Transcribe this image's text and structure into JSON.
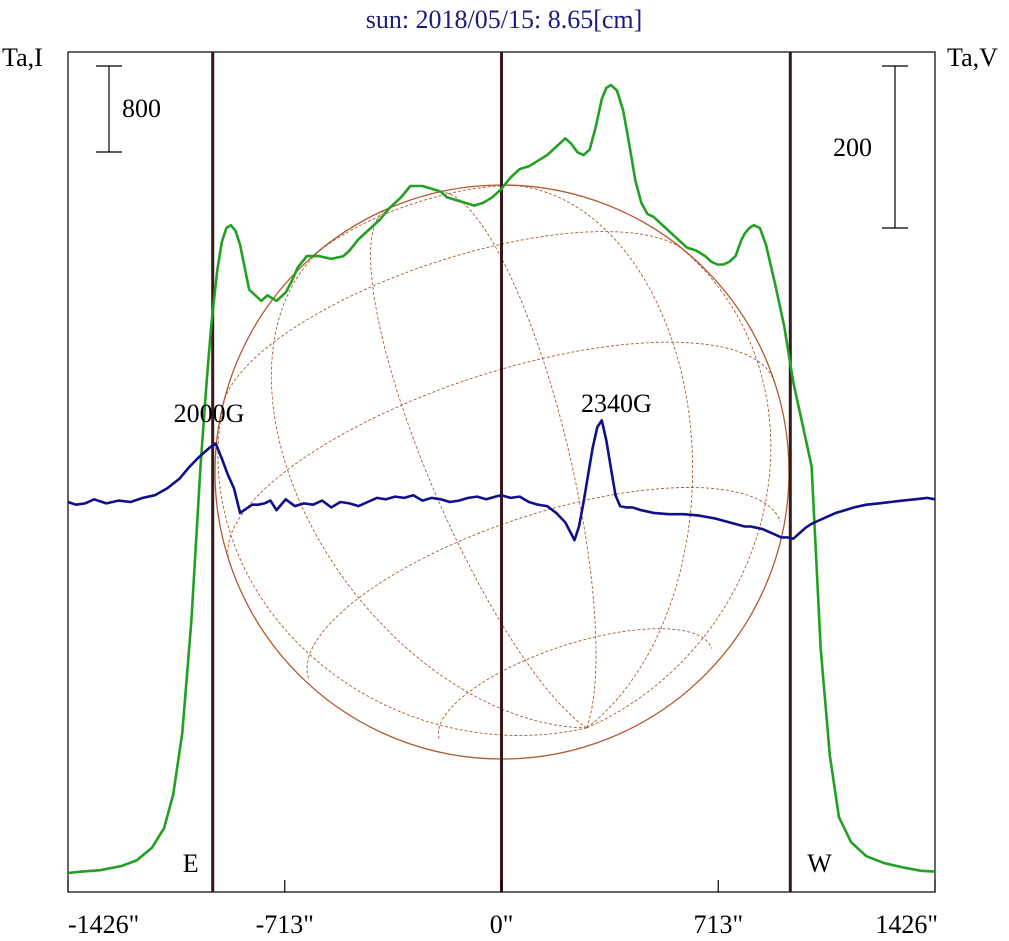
{
  "chart_data": {
    "type": "line",
    "title": "sun: 2018/05/15: 8.65[cm]",
    "left_axis_label": "Ta,I",
    "right_axis_label": "Ta,V",
    "left_scale_bar_label": "800",
    "right_scale_bar_label": "200",
    "x_ticks": [
      "-1426\"",
      "-713\"",
      "0\"",
      "713\"",
      "1426\""
    ],
    "x_tick_values": [
      -1426,
      -713,
      0,
      713,
      1426
    ],
    "xlim": [
      -1426,
      1426
    ],
    "limb_markers": [
      {
        "label": "E",
        "x": -950
      },
      {
        "label": "",
        "x": 0
      },
      {
        "label": "W",
        "x": 950
      }
    ],
    "annotations": [
      {
        "text": "2000G",
        "x": -980
      },
      {
        "text": "2340G",
        "x": 360
      }
    ],
    "colors": {
      "intensity": "#22a022",
      "polarization": "#10108a",
      "disk": "#b05a30",
      "markers": "#3a1818",
      "title": "#1a1a80"
    },
    "series": [
      {
        "key": "intensity",
        "x": [
          -1426,
          -1380,
          -1320,
          -1250,
          -1200,
          -1150,
          -1110,
          -1080,
          -1050,
          -1020,
          -990,
          -970,
          -955,
          -945,
          -935,
          -920,
          -905,
          -890,
          -875,
          -860,
          -845,
          -830,
          -810,
          -790,
          -770,
          -740,
          -710,
          -690,
          -670,
          -640,
          -600,
          -560,
          -520,
          -500,
          -470,
          -430,
          -400,
          -370,
          -330,
          -300,
          -260,
          -230,
          -200,
          -180,
          -150,
          -120,
          -90,
          -60,
          -30,
          0,
          30,
          60,
          90,
          120,
          150,
          170,
          190,
          210,
          230,
          250,
          270,
          290,
          310,
          330,
          345,
          360,
          380,
          400,
          420,
          440,
          460,
          480,
          500,
          520,
          550,
          580,
          610,
          640,
          670,
          690,
          710,
          730,
          750,
          770,
          780,
          790,
          800,
          815,
          830,
          850,
          870,
          900,
          930,
          960,
          990,
          1020,
          1050,
          1080,
          1110,
          1150,
          1200,
          1260,
          1320,
          1380,
          1426
        ],
        "values": [
          0,
          5,
          10,
          25,
          45,
          90,
          160,
          280,
          500,
          900,
          1450,
          1750,
          1950,
          2050,
          2150,
          2250,
          2300,
          2310,
          2290,
          2240,
          2160,
          2080,
          2060,
          2040,
          2060,
          2040,
          2070,
          2110,
          2160,
          2200,
          2200,
          2190,
          2200,
          2220,
          2260,
          2300,
          2330,
          2370,
          2410,
          2450,
          2450,
          2440,
          2430,
          2410,
          2400,
          2390,
          2380,
          2390,
          2410,
          2440,
          2480,
          2510,
          2520,
          2540,
          2560,
          2580,
          2600,
          2620,
          2600,
          2570,
          2560,
          2580,
          2660,
          2760,
          2800,
          2810,
          2790,
          2720,
          2600,
          2470,
          2390,
          2350,
          2340,
          2320,
          2290,
          2260,
          2230,
          2220,
          2200,
          2180,
          2170,
          2170,
          2180,
          2200,
          2230,
          2260,
          2280,
          2300,
          2310,
          2300,
          2240,
          2100,
          1950,
          1750,
          1600,
          1450,
          800,
          420,
          200,
          110,
          60,
          35,
          20,
          8,
          5
        ]
      },
      {
        "key": "polarization",
        "x": [
          -1426,
          -1400,
          -1370,
          -1340,
          -1300,
          -1260,
          -1220,
          -1180,
          -1140,
          -1100,
          -1060,
          -1030,
          -1000,
          -980,
          -960,
          -940,
          -920,
          -900,
          -880,
          -860,
          -840,
          -820,
          -800,
          -780,
          -760,
          -740,
          -710,
          -680,
          -650,
          -620,
          -590,
          -560,
          -530,
          -500,
          -470,
          -440,
          -410,
          -380,
          -350,
          -320,
          -290,
          -260,
          -230,
          -200,
          -170,
          -140,
          -110,
          -80,
          -50,
          -20,
          0,
          30,
          60,
          90,
          120,
          150,
          180,
          210,
          240,
          255,
          270,
          285,
          300,
          315,
          330,
          345,
          360,
          375,
          390,
          410,
          430,
          460,
          500,
          550,
          600,
          650,
          700,
          750,
          800,
          820,
          840,
          860,
          880,
          900,
          920,
          940,
          960,
          980,
          1000,
          1020,
          1040,
          1060,
          1080,
          1100,
          1130,
          1160,
          1200,
          1240,
          1280,
          1320,
          1360,
          1400,
          1426
        ],
        "values": [
          0,
          -2,
          -1,
          2,
          -1,
          1,
          0,
          3,
          5,
          10,
          17,
          25,
          32,
          36,
          40,
          43,
          32,
          20,
          10,
          -8,
          -5,
          -2,
          -2,
          -1,
          1,
          -6,
          2,
          -3,
          -1,
          -2,
          1,
          -4,
          0,
          -1,
          -3,
          0,
          3,
          2,
          4,
          3,
          5,
          1,
          3,
          2,
          0,
          1,
          3,
          4,
          2,
          4,
          5,
          3,
          4,
          0,
          -2,
          -3,
          -8,
          -15,
          -28,
          -18,
          0,
          20,
          40,
          55,
          60,
          45,
          25,
          5,
          -3,
          -4,
          -4,
          -6,
          -8,
          -9,
          -9,
          -10,
          -12,
          -15,
          -18,
          -18,
          -19,
          -20,
          -22,
          -24,
          -26,
          -26,
          -27,
          -23,
          -19,
          -16,
          -14,
          -12,
          -10,
          -8,
          -6,
          -4,
          -2,
          -1,
          0,
          1,
          2,
          3,
          2
        ]
      }
    ]
  }
}
